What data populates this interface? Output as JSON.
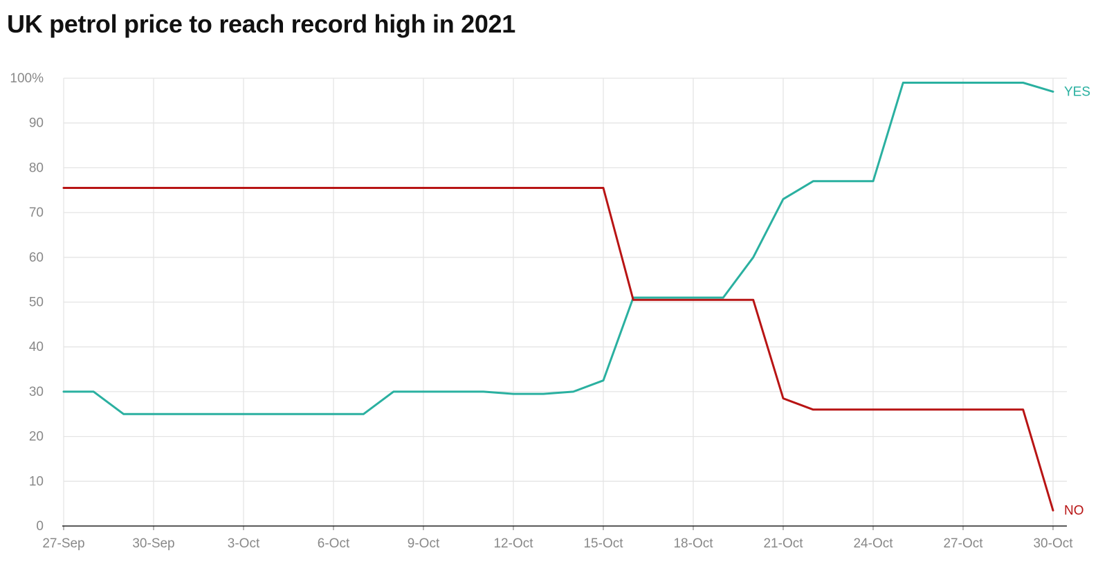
{
  "chart_data": {
    "type": "line",
    "title": "UK petrol price to reach record high in 2021",
    "xlabel": "",
    "ylabel": "",
    "x_ticks": [
      "27-Sep",
      "30-Sep",
      "3-Oct",
      "6-Oct",
      "9-Oct",
      "12-Oct",
      "15-Oct",
      "18-Oct",
      "21-Oct",
      "24-Oct",
      "27-Oct",
      "30-Oct"
    ],
    "y_ticks": [
      "0",
      "10",
      "20",
      "30",
      "40",
      "50",
      "60",
      "70",
      "80",
      "90",
      "100%"
    ],
    "ylim": [
      0,
      100
    ],
    "grid": true,
    "x": [
      "27-Sep",
      "28-Sep",
      "29-Sep",
      "30-Sep",
      "1-Oct",
      "2-Oct",
      "3-Oct",
      "4-Oct",
      "5-Oct",
      "6-Oct",
      "7-Oct",
      "8-Oct",
      "9-Oct",
      "10-Oct",
      "11-Oct",
      "12-Oct",
      "13-Oct",
      "14-Oct",
      "15-Oct",
      "16-Oct",
      "17-Oct",
      "18-Oct",
      "19-Oct",
      "20-Oct",
      "21-Oct",
      "22-Oct",
      "23-Oct",
      "24-Oct",
      "25-Oct",
      "26-Oct",
      "27-Oct",
      "28-Oct",
      "29-Oct",
      "30-Oct"
    ],
    "series": [
      {
        "name": "YES",
        "color": "#2ab0a0",
        "values": [
          30,
          30,
          25,
          25,
          25,
          25,
          25,
          25,
          25,
          25,
          25,
          30,
          30,
          30,
          30,
          29.5,
          29.5,
          30,
          32.5,
          51,
          51,
          51,
          51,
          60,
          73,
          77,
          77,
          77,
          99,
          99,
          99,
          99,
          99,
          97
        ]
      },
      {
        "name": "NO",
        "color": "#b81414",
        "values": [
          75.5,
          75.5,
          75.5,
          75.5,
          75.5,
          75.5,
          75.5,
          75.5,
          75.5,
          75.5,
          75.5,
          75.5,
          75.5,
          75.5,
          75.5,
          75.5,
          75.5,
          75.5,
          75.5,
          50.5,
          50.5,
          50.5,
          50.5,
          50.5,
          28.5,
          26,
          26,
          26,
          26,
          26,
          26,
          26,
          26,
          3.5
        ]
      }
    ]
  }
}
